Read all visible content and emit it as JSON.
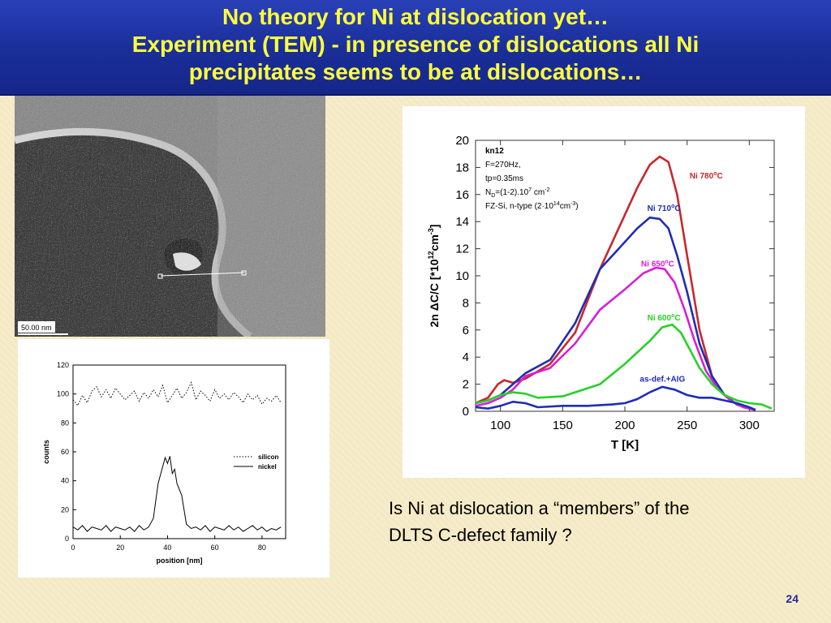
{
  "slide": {
    "title_lines": [
      "No theory for Ni at dislocation yet…",
      "Experiment (TEM) - in presence of dislocations all Ni",
      "precipitates seems to be at dislocations…"
    ],
    "question_lines": [
      "Is Ni at dislocation a “members” of the",
      "DLTS C-defect family ?"
    ],
    "page_number": "24",
    "colors": {
      "title_bg": "#1b2f9a",
      "title_text": "#ffff3c",
      "page_number": "#1f2d9a"
    }
  },
  "tem_image": {
    "scale_bar_label": "50.00 nm"
  },
  "chart_data": [
    {
      "type": "line",
      "xlabel": "position [nm]",
      "ylabel": "counts",
      "xlim": [
        0,
        90
      ],
      "ylim": [
        0,
        120
      ],
      "x_ticks": [
        0,
        20,
        40,
        60,
        80
      ],
      "y_ticks": [
        0,
        20,
        40,
        60,
        80,
        100,
        120
      ],
      "legend_position": "right",
      "series": [
        {
          "name": "silicon",
          "style": "dotted",
          "x": [
            0,
            2,
            4,
            6,
            8,
            10,
            12,
            14,
            16,
            18,
            20,
            22,
            24,
            26,
            28,
            30,
            32,
            34,
            36,
            38,
            40,
            42,
            44,
            46,
            48,
            50,
            52,
            54,
            56,
            58,
            60,
            62,
            64,
            66,
            68,
            70,
            72,
            74,
            76,
            78,
            80,
            82,
            84,
            86,
            88
          ],
          "y": [
            96,
            92,
            99,
            94,
            102,
            105,
            98,
            103,
            97,
            104,
            100,
            96,
            99,
            102,
            95,
            101,
            97,
            103,
            98,
            106,
            94,
            99,
            104,
            97,
            101,
            108,
            96,
            102,
            99,
            95,
            103,
            97,
            100,
            96,
            101,
            98,
            94,
            100,
            96,
            99,
            93,
            97,
            95,
            99,
            94
          ]
        },
        {
          "name": "nickel",
          "style": "solid",
          "x": [
            0,
            2,
            4,
            6,
            8,
            10,
            12,
            14,
            16,
            18,
            20,
            22,
            24,
            26,
            28,
            30,
            32,
            34,
            36,
            38,
            39,
            40,
            41,
            42,
            43,
            44,
            46,
            48,
            50,
            52,
            54,
            56,
            58,
            60,
            62,
            64,
            66,
            68,
            70,
            72,
            74,
            76,
            78,
            80,
            82,
            84,
            86,
            88
          ],
          "y": [
            8,
            6,
            9,
            5,
            8,
            7,
            6,
            9,
            5,
            8,
            7,
            6,
            8,
            5,
            9,
            6,
            8,
            14,
            38,
            50,
            56,
            52,
            57,
            45,
            48,
            38,
            30,
            10,
            7,
            8,
            6,
            9,
            5,
            8,
            7,
            6,
            9,
            6,
            8,
            5,
            7,
            9,
            6,
            8,
            5,
            7,
            6,
            8
          ]
        }
      ]
    },
    {
      "type": "line",
      "xlabel": "T [K]",
      "ylabel": "2n ΔC/C  [*10",
      "ylabel_exp": "12",
      "ylabel_unit": "cm",
      "ylabel_unit_exp": "-3",
      "ylabel_close": "]",
      "xlim": [
        80,
        320
      ],
      "ylim": [
        0,
        20
      ],
      "x_ticks": [
        100,
        150,
        200,
        250,
        300
      ],
      "y_ticks": [
        0,
        2,
        4,
        6,
        8,
        10,
        12,
        14,
        16,
        18,
        20
      ],
      "annotation_lines": [
        {
          "text": "kn12",
          "bold": true
        },
        {
          "text": "F=270Hz,"
        },
        {
          "text": "tp=0.35ms"
        },
        {
          "text": "N",
          "sub": "D",
          "rest": "=(1-2).10",
          "sup": "7",
          "rest2": " cm",
          "sup2": "-2"
        },
        {
          "text": "FZ-Si, n-type (2·10",
          "sup": "14",
          "rest": "cm",
          "sup2": "-3",
          "rest2": ")"
        }
      ],
      "series": [
        {
          "name": "Ni 780",
          "label_sup": "o",
          "label_unit": "C",
          "color": "#c8282a",
          "x": [
            80,
            90,
            98,
            103,
            110,
            120,
            140,
            160,
            180,
            200,
            210,
            220,
            228,
            235,
            242,
            250,
            260,
            270,
            280,
            290,
            300,
            305
          ],
          "y": [
            0.6,
            1.0,
            2.0,
            2.3,
            2.1,
            2.4,
            3.5,
            5.8,
            10.5,
            14.5,
            16.5,
            18.2,
            18.8,
            18.4,
            16.0,
            11.5,
            6.0,
            2.6,
            1.2,
            0.5,
            0.2,
            0.1
          ]
        },
        {
          "name": "Ni 710",
          "label_sup": "o",
          "label_unit": "C",
          "color": "#1f2db5",
          "x": [
            80,
            90,
            100,
            110,
            120,
            140,
            160,
            180,
            200,
            210,
            220,
            228,
            235,
            242,
            250,
            260,
            270,
            280,
            290,
            300,
            305
          ],
          "y": [
            0.6,
            0.8,
            1.2,
            2.0,
            2.8,
            3.8,
            6.5,
            10.5,
            12.5,
            13.5,
            14.3,
            14.2,
            13.5,
            11.5,
            8.8,
            5.0,
            2.6,
            1.2,
            0.5,
            0.2,
            0.1
          ]
        },
        {
          "name": "Ni 650",
          "label_sup": "o",
          "label_unit": "C",
          "color": "#d61fd6",
          "x": [
            80,
            90,
            100,
            110,
            120,
            140,
            160,
            180,
            200,
            215,
            225,
            232,
            240,
            248,
            256,
            265,
            275,
            285,
            295,
            305
          ],
          "y": [
            0.4,
            0.6,
            1.0,
            1.6,
            2.6,
            3.2,
            5.0,
            7.5,
            9.0,
            10.2,
            10.6,
            10.5,
            9.5,
            7.5,
            5.2,
            3.0,
            1.6,
            0.8,
            0.3,
            0.1
          ]
        },
        {
          "name": "Ni 600",
          "label_sup": "o",
          "label_unit": "C",
          "color": "#26d126",
          "x": [
            80,
            90,
            100,
            110,
            120,
            130,
            150,
            180,
            200,
            220,
            230,
            238,
            245,
            252,
            260,
            270,
            280,
            290,
            300,
            310,
            318
          ],
          "y": [
            0.6,
            0.8,
            1.2,
            1.4,
            1.3,
            1.0,
            1.1,
            2.0,
            3.5,
            5.2,
            6.2,
            6.4,
            5.8,
            4.6,
            3.2,
            2.0,
            1.2,
            0.8,
            0.6,
            0.5,
            0.2
          ]
        },
        {
          "name": "as-def.+AIG",
          "color": "#1f2db5",
          "x": [
            80,
            90,
            100,
            110,
            120,
            130,
            150,
            170,
            190,
            200,
            210,
            220,
            230,
            240,
            250,
            260,
            270,
            280,
            290,
            300,
            305
          ],
          "y": [
            0.3,
            0.2,
            0.4,
            0.7,
            0.6,
            0.3,
            0.4,
            0.4,
            0.5,
            0.6,
            0.9,
            1.4,
            1.8,
            1.6,
            1.2,
            1.0,
            1.0,
            0.8,
            0.6,
            0.3,
            0.1
          ]
        }
      ]
    }
  ]
}
